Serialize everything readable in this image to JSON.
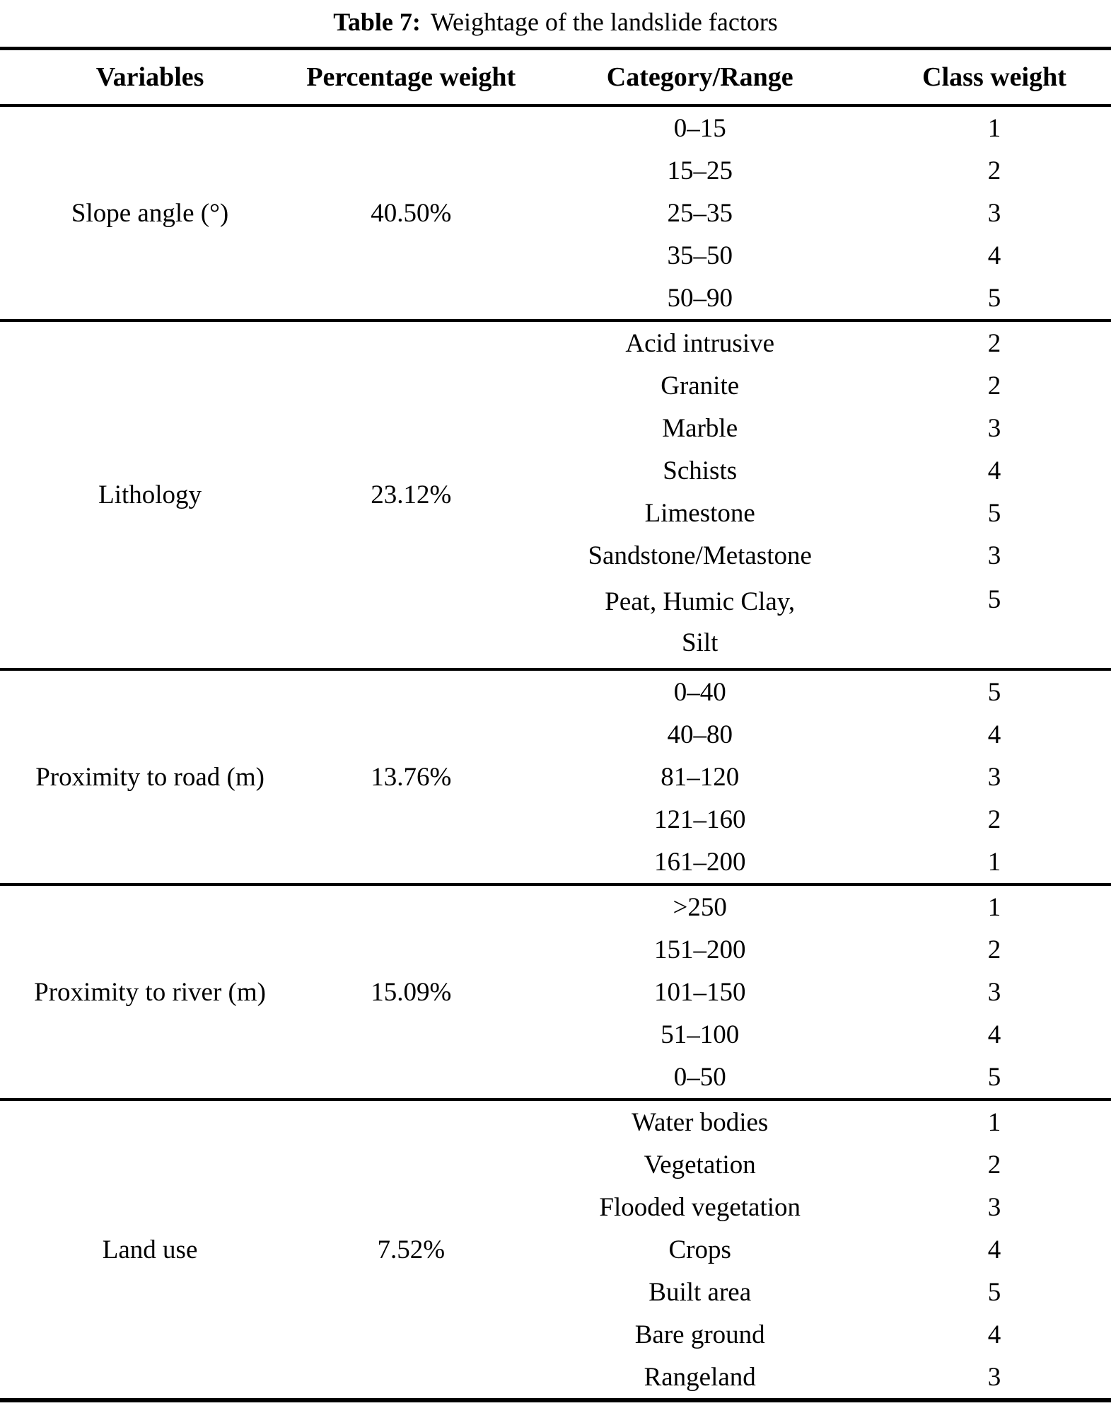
{
  "title": {
    "label": "Table 7:",
    "caption": "Weightage of the landslide factors"
  },
  "table": {
    "headers": {
      "variables": "Variables",
      "percentage_weight": "Percentage weight",
      "category_range": "Category/Range",
      "class_weight": "Class weight"
    },
    "sections": [
      {
        "variable": "Slope angle (°)",
        "percentage": "40.50%",
        "rows": [
          {
            "category": "0–15",
            "weight": "1"
          },
          {
            "category": "15–25",
            "weight": "2"
          },
          {
            "category": "25–35",
            "weight": "3"
          },
          {
            "category": "35–50",
            "weight": "4"
          },
          {
            "category": "50–90",
            "weight": "5"
          }
        ]
      },
      {
        "variable": "Lithology",
        "percentage": "23.12%",
        "rows": [
          {
            "category": "Acid intrusive",
            "weight": "2"
          },
          {
            "category": "Granite",
            "weight": "2"
          },
          {
            "category": "Marble",
            "weight": "3"
          },
          {
            "category": "Schists",
            "weight": "4"
          },
          {
            "category": "Limestone",
            "weight": "5"
          },
          {
            "category": "Sandstone/Metastone",
            "weight": "3"
          },
          {
            "category": "Peat, Humic Clay,",
            "category_line2": "Silt",
            "weight": "5"
          }
        ]
      },
      {
        "variable": "Proximity to road (m)",
        "percentage": "13.76%",
        "rows": [
          {
            "category": "0–40",
            "weight": "5"
          },
          {
            "category": "40–80",
            "weight": "4"
          },
          {
            "category": "81–120",
            "weight": "3"
          },
          {
            "category": "121–160",
            "weight": "2"
          },
          {
            "category": "161–200",
            "weight": "1"
          }
        ]
      },
      {
        "variable": "Proximity to river (m)",
        "percentage": "15.09%",
        "rows": [
          {
            "category": ">250",
            "weight": "1"
          },
          {
            "category": "151–200",
            "weight": "2"
          },
          {
            "category": "101–150",
            "weight": "3"
          },
          {
            "category": "51–100",
            "weight": "4"
          },
          {
            "category": "0–50",
            "weight": "5"
          }
        ]
      },
      {
        "variable": "Land use",
        "percentage": "7.52%",
        "rows": [
          {
            "category": "Water bodies",
            "weight": "1"
          },
          {
            "category": "Vegetation",
            "weight": "2"
          },
          {
            "category": "Flooded vegetation",
            "weight": "3"
          },
          {
            "category": "Crops",
            "weight": "4"
          },
          {
            "category": "Built area",
            "weight": "5"
          },
          {
            "category": "Bare ground",
            "weight": "4"
          },
          {
            "category": "Rangeland",
            "weight": "3"
          }
        ]
      }
    ],
    "text_color": "#000000",
    "background_color": "#ffffff"
  }
}
